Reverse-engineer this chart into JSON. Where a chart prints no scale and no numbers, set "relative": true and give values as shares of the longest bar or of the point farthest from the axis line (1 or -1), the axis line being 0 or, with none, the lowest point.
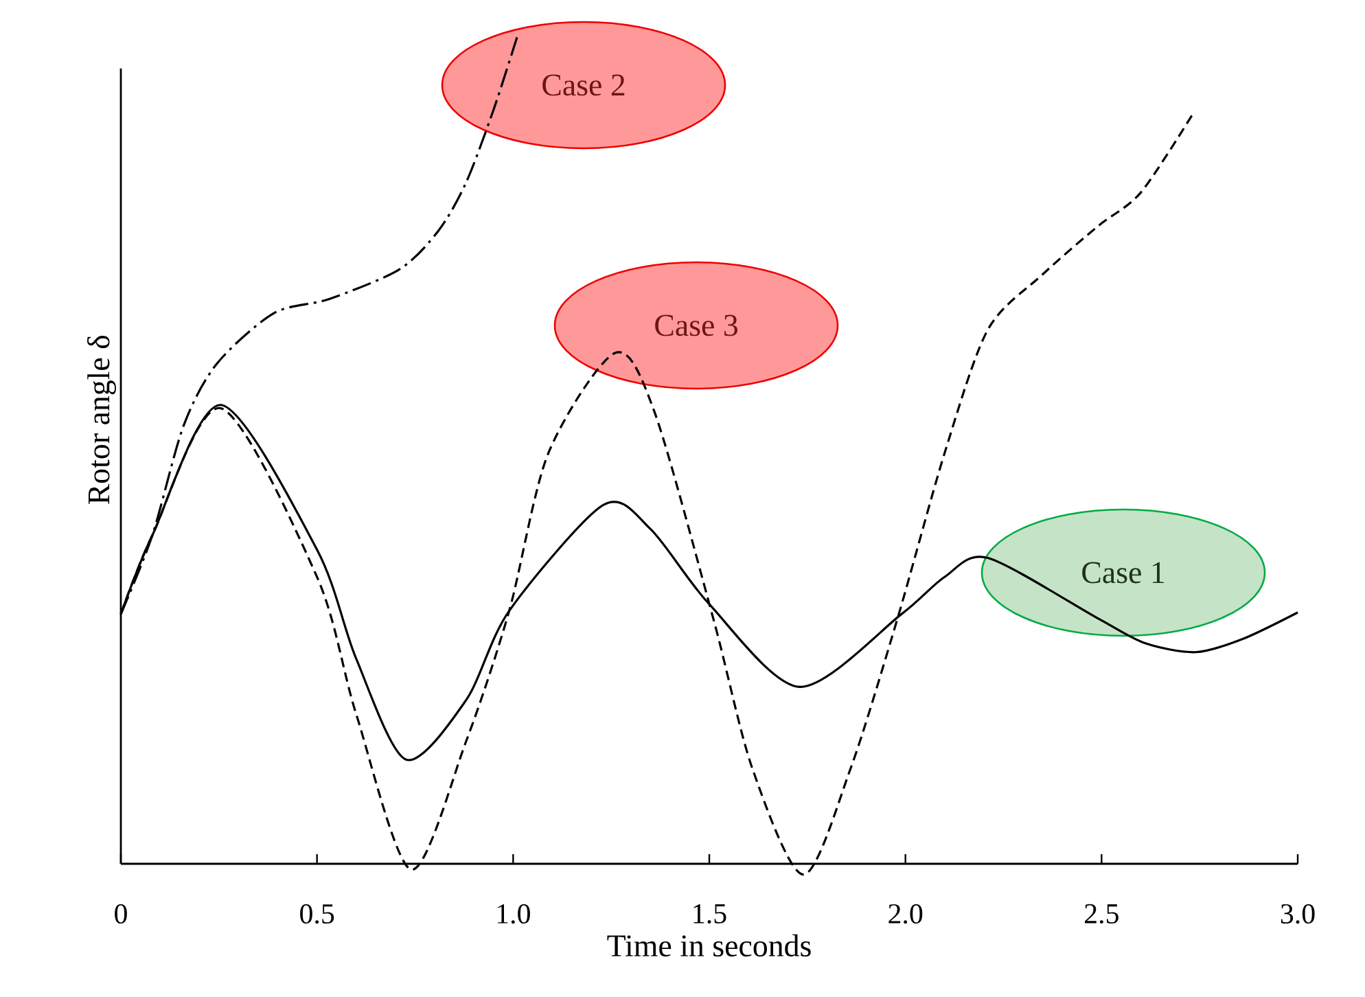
{
  "chart_data": {
    "type": "line",
    "relative": true,
    "xlabel": "Time in seconds",
    "ylabel": "Rotor angle δ",
    "xlim": [
      0,
      3.0
    ],
    "xticks": [
      0,
      {
        "value": 0.5,
        "label": "0.5"
      },
      {
        "value": 1.0,
        "label": "1.0"
      },
      {
        "value": 1.5,
        "label": "1.5"
      },
      {
        "value": 2.0,
        "label": "2.0"
      },
      {
        "value": 2.5,
        "label": "2.5"
      },
      {
        "value": 3.0,
        "label": "3.0"
      }
    ],
    "series": [
      {
        "color": "#000000",
        "line_style": "solid",
        "x": [
          0,
          0.08,
          0.255,
          0.5,
          0.6,
          0.727,
          0.88,
          0.99,
          1.23,
          1.35,
          1.5,
          1.73,
          1.99,
          2.1,
          2.21,
          2.49,
          2.61,
          2.74,
          2.86,
          3.0
        ],
        "values": [
          0.302,
          0.397,
          0.555,
          0.38,
          0.248,
          0.126,
          0.198,
          0.306,
          0.434,
          0.405,
          0.314,
          0.214,
          0.302,
          0.347,
          0.37,
          0.297,
          0.267,
          0.256,
          0.272,
          0.304
        ]
      },
      {
        "color": "#000000",
        "line_style": "dashdot",
        "x": [
          0,
          0.08,
          0.16,
          0.245,
          0.39,
          0.53,
          0.71,
          0.81,
          0.88,
          0.95,
          1.01
        ],
        "values": [
          0.302,
          0.397,
          0.53,
          0.605,
          0.666,
          0.683,
          0.719,
          0.766,
          0.824,
          0.912,
          1.0
        ]
      },
      {
        "color": "#000000",
        "line_style": "dashed",
        "x": [
          0,
          0.08,
          0.255,
          0.5,
          0.6,
          0.74,
          0.88,
          0.99,
          1.09,
          1.26,
          1.36,
          1.51,
          1.61,
          1.74,
          1.86,
          1.98,
          2.1,
          2.21,
          2.35,
          2.49,
          2.6,
          2.73
        ],
        "values": [
          0.302,
          0.397,
          0.551,
          0.347,
          0.181,
          -0.007,
          0.148,
          0.306,
          0.497,
          0.618,
          0.547,
          0.297,
          0.115,
          -0.013,
          0.115,
          0.297,
          0.497,
          0.646,
          0.713,
          0.771,
          0.812,
          0.905
        ]
      }
    ],
    "annotations": [
      "Case 2",
      "Case 3",
      "Case 1"
    ]
  }
}
